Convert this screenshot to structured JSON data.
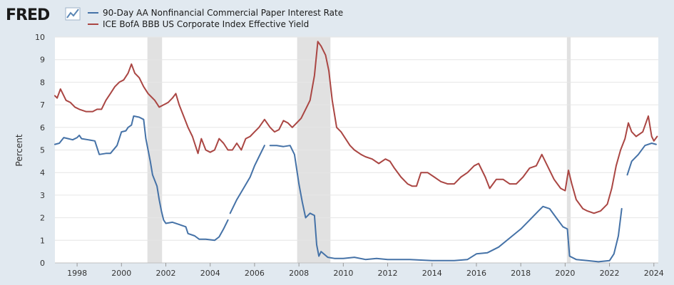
{
  "logo": {
    "text": "FRED"
  },
  "colors": {
    "series1": "#4572a7",
    "series2": "#aa4643",
    "recession": "#e1e1e1",
    "grid": "#e6e6e6",
    "plot_bg": "#ffffff"
  },
  "chart_data": {
    "type": "line",
    "ylabel": "Percent",
    "ylim": [
      0,
      10
    ],
    "xlim": [
      1997.0,
      2024.2
    ],
    "yticks": [
      0,
      1,
      2,
      3,
      4,
      5,
      6,
      7,
      8,
      9,
      10
    ],
    "xticks": [
      1998,
      2000,
      2002,
      2004,
      2006,
      2008,
      2010,
      2012,
      2014,
      2016,
      2018,
      2020,
      2022,
      2024
    ],
    "grid": true,
    "legend_position": "top-left",
    "recessions": [
      [
        2001.17,
        2001.83
      ],
      [
        2007.92,
        2009.42
      ],
      [
        2020.08,
        2020.25
      ]
    ],
    "series": [
      {
        "name": "90-Day AA Nonfinancial Commercial Paper Interest Rate",
        "color": "#4572a7",
        "segments": [
          [
            [
              1997.0,
              5.25
            ],
            [
              1997.2,
              5.3
            ],
            [
              1997.4,
              5.55
            ],
            [
              1997.6,
              5.5
            ],
            [
              1997.8,
              5.45
            ],
            [
              1998.0,
              5.55
            ],
            [
              1998.1,
              5.65
            ],
            [
              1998.2,
              5.5
            ],
            [
              1998.5,
              5.45
            ],
            [
              1998.8,
              5.4
            ],
            [
              1999.0,
              4.8
            ],
            [
              1999.3,
              4.85
            ],
            [
              1999.5,
              4.85
            ],
            [
              1999.8,
              5.2
            ],
            [
              2000.0,
              5.8
            ],
            [
              2000.2,
              5.85
            ],
            [
              2000.3,
              6.0
            ],
            [
              2000.45,
              6.1
            ],
            [
              2000.55,
              6.5
            ],
            [
              2000.8,
              6.45
            ],
            [
              2001.0,
              6.35
            ],
            [
              2001.1,
              5.5
            ],
            [
              2001.3,
              4.5
            ],
            [
              2001.4,
              3.9
            ],
            [
              2001.6,
              3.4
            ],
            [
              2001.7,
              2.8
            ],
            [
              2001.8,
              2.3
            ],
            [
              2001.9,
              1.9
            ],
            [
              2002.0,
              1.75
            ],
            [
              2002.3,
              1.8
            ],
            [
              2002.6,
              1.7
            ],
            [
              2002.9,
              1.6
            ],
            [
              2003.0,
              1.3
            ],
            [
              2003.3,
              1.2
            ],
            [
              2003.5,
              1.05
            ],
            [
              2003.8,
              1.05
            ],
            [
              2004.2,
              1.0
            ],
            [
              2004.4,
              1.15
            ],
            [
              2004.6,
              1.5
            ],
            [
              2004.8,
              1.9
            ]
          ],
          [
            [
              2004.9,
              2.2
            ],
            [
              2005.2,
              2.8
            ],
            [
              2005.5,
              3.3
            ],
            [
              2005.8,
              3.8
            ],
            [
              2006.0,
              4.3
            ],
            [
              2006.2,
              4.7
            ],
            [
              2006.45,
              5.2
            ]
          ],
          [
            [
              2006.7,
              5.2
            ],
            [
              2007.0,
              5.2
            ],
            [
              2007.3,
              5.15
            ],
            [
              2007.6,
              5.2
            ],
            [
              2007.8,
              4.8
            ],
            [
              2008.0,
              3.5
            ],
            [
              2008.15,
              2.7
            ],
            [
              2008.3,
              2.0
            ],
            [
              2008.5,
              2.2
            ],
            [
              2008.7,
              2.1
            ],
            [
              2008.8,
              0.8
            ],
            [
              2008.9,
              0.3
            ],
            [
              2009.0,
              0.5
            ],
            [
              2009.3,
              0.25
            ],
            [
              2009.6,
              0.2
            ],
            [
              2010.0,
              0.2
            ],
            [
              2010.5,
              0.25
            ],
            [
              2011.0,
              0.15
            ],
            [
              2011.5,
              0.2
            ],
            [
              2012.0,
              0.15
            ],
            [
              2013.0,
              0.15
            ],
            [
              2014.0,
              0.1
            ],
            [
              2015.0,
              0.1
            ],
            [
              2015.6,
              0.15
            ],
            [
              2016.0,
              0.4
            ],
            [
              2016.5,
              0.45
            ],
            [
              2017.0,
              0.7
            ],
            [
              2017.5,
              1.1
            ],
            [
              2018.0,
              1.5
            ],
            [
              2018.4,
              1.9
            ],
            [
              2018.8,
              2.3
            ],
            [
              2019.0,
              2.5
            ],
            [
              2019.3,
              2.4
            ],
            [
              2019.6,
              2.0
            ],
            [
              2019.9,
              1.6
            ],
            [
              2020.1,
              1.5
            ],
            [
              2020.2,
              0.3
            ],
            [
              2020.5,
              0.15
            ],
            [
              2021.0,
              0.1
            ],
            [
              2021.5,
              0.05
            ],
            [
              2022.0,
              0.1
            ],
            [
              2022.2,
              0.4
            ],
            [
              2022.4,
              1.2
            ],
            [
              2022.55,
              2.4
            ]
          ],
          [
            [
              2022.8,
              3.9
            ],
            [
              2023.0,
              4.5
            ],
            [
              2023.3,
              4.8
            ],
            [
              2023.6,
              5.2
            ],
            [
              2023.9,
              5.3
            ],
            [
              2024.1,
              5.25
            ]
          ]
        ]
      },
      {
        "name": "ICE BofA BBB US Corporate Index Effective Yield",
        "color": "#aa4643",
        "segments": [
          [
            [
              1997.0,
              7.4
            ],
            [
              1997.1,
              7.3
            ],
            [
              1997.25,
              7.7
            ],
            [
              1997.5,
              7.2
            ],
            [
              1997.7,
              7.1
            ],
            [
              1997.9,
              6.9
            ],
            [
              1998.1,
              6.8
            ],
            [
              1998.4,
              6.7
            ],
            [
              1998.7,
              6.7
            ],
            [
              1998.9,
              6.8
            ],
            [
              1999.1,
              6.8
            ],
            [
              1999.3,
              7.2
            ],
            [
              1999.5,
              7.5
            ],
            [
              1999.7,
              7.8
            ],
            [
              1999.9,
              8.0
            ],
            [
              2000.1,
              8.1
            ],
            [
              2000.3,
              8.4
            ],
            [
              2000.45,
              8.8
            ],
            [
              2000.6,
              8.4
            ],
            [
              2000.8,
              8.2
            ],
            [
              2001.0,
              7.8
            ],
            [
              2001.2,
              7.5
            ],
            [
              2001.5,
              7.2
            ],
            [
              2001.7,
              6.9
            ],
            [
              2001.9,
              7.0
            ],
            [
              2002.1,
              7.1
            ],
            [
              2002.3,
              7.3
            ],
            [
              2002.45,
              7.5
            ],
            [
              2002.6,
              7.0
            ],
            [
              2002.8,
              6.5
            ],
            [
              2003.0,
              6.0
            ],
            [
              2003.2,
              5.6
            ],
            [
              2003.45,
              4.85
            ],
            [
              2003.6,
              5.5
            ],
            [
              2003.8,
              5.0
            ],
            [
              2004.0,
              4.9
            ],
            [
              2004.2,
              5.0
            ],
            [
              2004.4,
              5.5
            ],
            [
              2004.6,
              5.3
            ],
            [
              2004.8,
              5.0
            ],
            [
              2005.0,
              5.0
            ],
            [
              2005.2,
              5.3
            ],
            [
              2005.4,
              5.0
            ],
            [
              2005.6,
              5.5
            ],
            [
              2005.8,
              5.6
            ],
            [
              2006.0,
              5.8
            ],
            [
              2006.2,
              6.0
            ],
            [
              2006.45,
              6.35
            ],
            [
              2006.7,
              6.0
            ],
            [
              2006.9,
              5.8
            ],
            [
              2007.1,
              5.9
            ],
            [
              2007.3,
              6.3
            ],
            [
              2007.5,
              6.2
            ],
            [
              2007.7,
              6.0
            ],
            [
              2007.9,
              6.2
            ],
            [
              2008.1,
              6.4
            ],
            [
              2008.3,
              6.8
            ],
            [
              2008.5,
              7.2
            ],
            [
              2008.7,
              8.3
            ],
            [
              2008.85,
              9.8
            ],
            [
              2009.0,
              9.6
            ],
            [
              2009.2,
              9.2
            ],
            [
              2009.35,
              8.5
            ],
            [
              2009.5,
              7.2
            ],
            [
              2009.7,
              6.0
            ],
            [
              2009.9,
              5.8
            ],
            [
              2010.1,
              5.5
            ],
            [
              2010.3,
              5.2
            ],
            [
              2010.5,
              5.0
            ],
            [
              2010.8,
              4.8
            ],
            [
              2011.0,
              4.7
            ],
            [
              2011.3,
              4.6
            ],
            [
              2011.6,
              4.4
            ],
            [
              2011.9,
              4.6
            ],
            [
              2012.1,
              4.5
            ],
            [
              2012.3,
              4.2
            ],
            [
              2012.6,
              3.8
            ],
            [
              2012.9,
              3.5
            ],
            [
              2013.1,
              3.4
            ],
            [
              2013.3,
              3.4
            ],
            [
              2013.5,
              4.0
            ],
            [
              2013.8,
              4.0
            ],
            [
              2014.1,
              3.8
            ],
            [
              2014.4,
              3.6
            ],
            [
              2014.7,
              3.5
            ],
            [
              2015.0,
              3.5
            ],
            [
              2015.3,
              3.8
            ],
            [
              2015.6,
              4.0
            ],
            [
              2015.9,
              4.3
            ],
            [
              2016.1,
              4.4
            ],
            [
              2016.4,
              3.8
            ],
            [
              2016.6,
              3.3
            ],
            [
              2016.9,
              3.7
            ],
            [
              2017.2,
              3.7
            ],
            [
              2017.5,
              3.5
            ],
            [
              2017.8,
              3.5
            ],
            [
              2018.1,
              3.8
            ],
            [
              2018.4,
              4.2
            ],
            [
              2018.7,
              4.3
            ],
            [
              2018.95,
              4.8
            ],
            [
              2019.2,
              4.3
            ],
            [
              2019.5,
              3.7
            ],
            [
              2019.8,
              3.3
            ],
            [
              2020.0,
              3.2
            ],
            [
              2020.15,
              4.1
            ],
            [
              2020.3,
              3.5
            ],
            [
              2020.5,
              2.8
            ],
            [
              2020.8,
              2.4
            ],
            [
              2021.0,
              2.3
            ],
            [
              2021.3,
              2.2
            ],
            [
              2021.6,
              2.3
            ],
            [
              2021.9,
              2.6
            ],
            [
              2022.1,
              3.3
            ],
            [
              2022.3,
              4.3
            ],
            [
              2022.5,
              5.0
            ],
            [
              2022.7,
              5.5
            ],
            [
              2022.85,
              6.2
            ],
            [
              2023.0,
              5.8
            ],
            [
              2023.2,
              5.6
            ],
            [
              2023.5,
              5.8
            ],
            [
              2023.75,
              6.5
            ],
            [
              2023.9,
              5.6
            ],
            [
              2024.0,
              5.4
            ],
            [
              2024.15,
              5.6
            ]
          ]
        ]
      }
    ]
  }
}
